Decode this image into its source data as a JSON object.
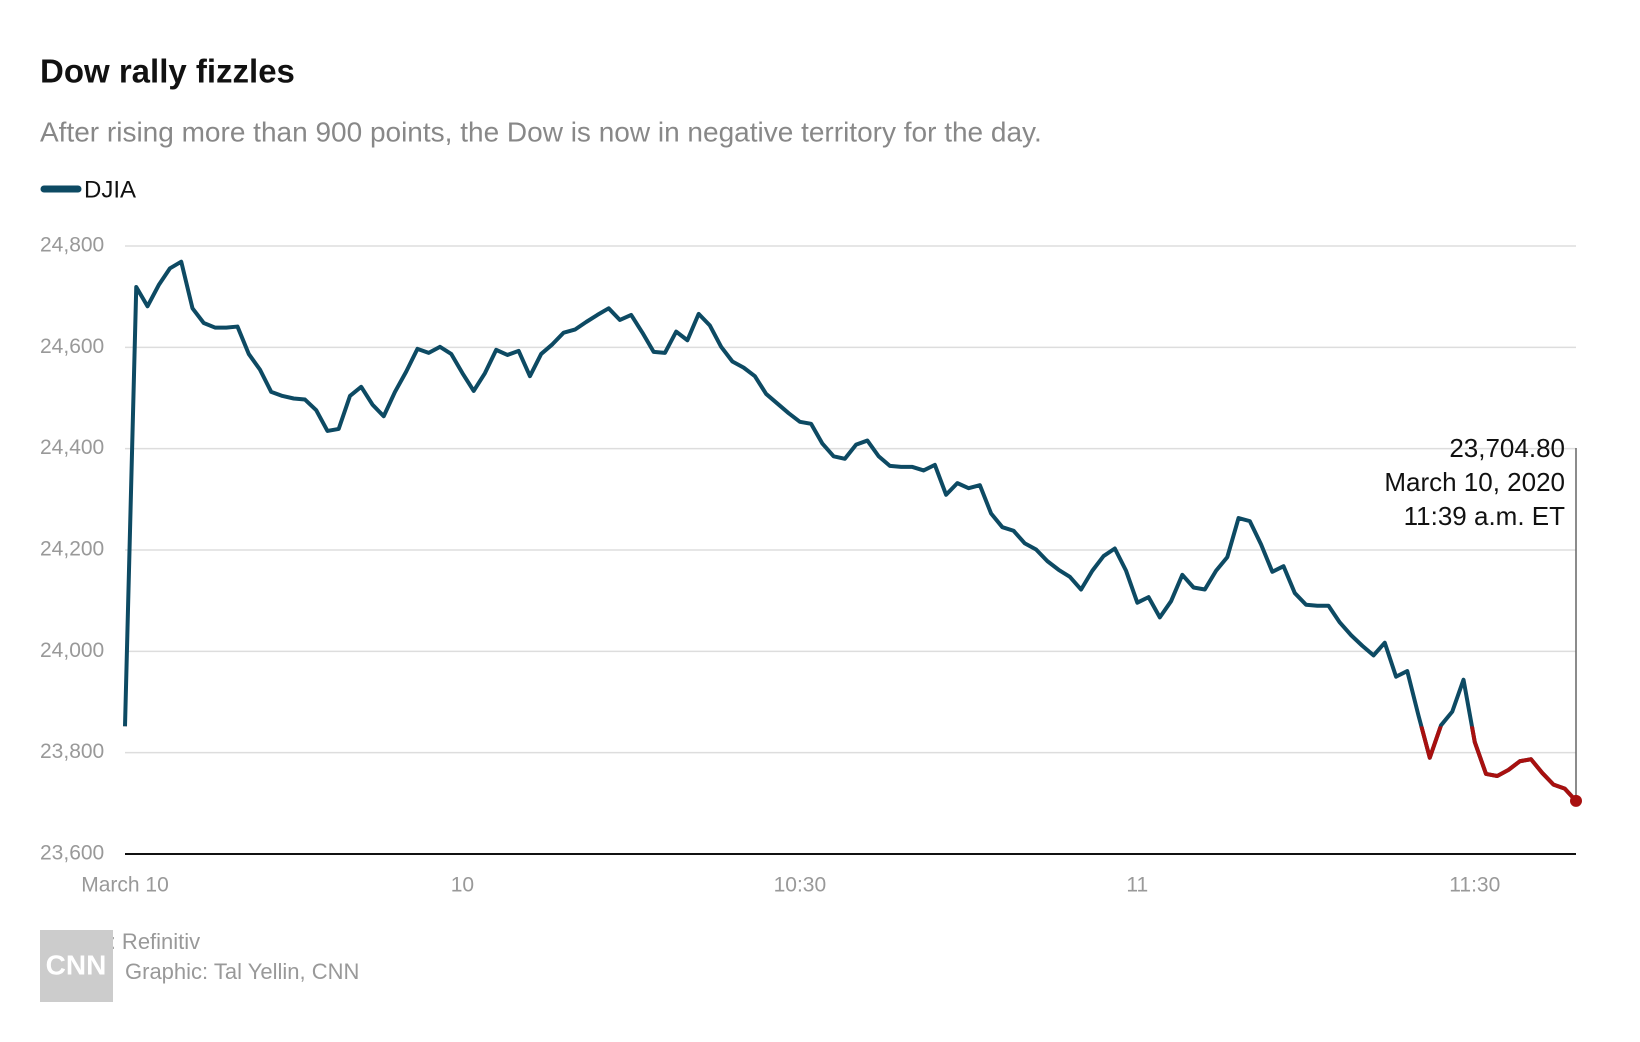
{
  "chart_data": {
    "type": "line",
    "title": "Dow rally fizzles",
    "subtitle": "After rising more than 900 points, the Dow is now in negative territory for the day.",
    "x": [
      0,
      1,
      2,
      3,
      4,
      5,
      6,
      7,
      8,
      9,
      10,
      11,
      12,
      13,
      14,
      15,
      16,
      17,
      18,
      19,
      20,
      21,
      22,
      23,
      24,
      25,
      26,
      27,
      28,
      29,
      30,
      31,
      32,
      33,
      34,
      35,
      36,
      37,
      38,
      39,
      40,
      41,
      42,
      43,
      44,
      45,
      46,
      47,
      48,
      49,
      50,
      51,
      52,
      53,
      54,
      55,
      56,
      57,
      58,
      59,
      60,
      61,
      62,
      63,
      64,
      65,
      66,
      67,
      68,
      69,
      70,
      71,
      72,
      73,
      74,
      75,
      76,
      77,
      78,
      79,
      80,
      81,
      82,
      83,
      84,
      85,
      86,
      87,
      88,
      89,
      90,
      91,
      92,
      93,
      94,
      95,
      96,
      97,
      98,
      99,
      100,
      101,
      102,
      103,
      104,
      105,
      106,
      107,
      108,
      109,
      110,
      111,
      112,
      113,
      114,
      115,
      116,
      117,
      118,
      119,
      120,
      121,
      122,
      123,
      124,
      125,
      126,
      127,
      128,
      129
    ],
    "series": [
      {
        "name": "DJIA",
        "color": "#0d4a63",
        "negative_color": "#a8100f",
        "values": [
          23852,
          24719,
          24681,
          24723,
          24756,
          24769,
          24677,
          24648,
          24639,
          24639,
          24641,
          24587,
          24556,
          24512,
          24504,
          24499,
          24497,
          24476,
          24435,
          24439,
          24504,
          24522,
          24487,
          24464,
          24512,
          24552,
          24597,
          24589,
          24601,
          24587,
          24549,
          24514,
          24549,
          24595,
          24585,
          24593,
          24543,
          24587,
          24606,
          24629,
          24635,
          24650,
          24664,
          24677,
          24654,
          24664,
          24629,
          24591,
          24589,
          24631,
          24614,
          24666,
          24643,
          24601,
          24572,
          24560,
          24543,
          24508,
          24489,
          24470,
          24453,
          24449,
          24410,
          24385,
          24380,
          24408,
          24416,
          24385,
          24366,
          24364,
          24364,
          24357,
          24368,
          24309,
          24332,
          24322,
          24328,
          24272,
          24245,
          24238,
          24213,
          24201,
          24178,
          24161,
          24147,
          24122,
          24159,
          24188,
          24203,
          24159,
          24096,
          24107,
          24067,
          24099,
          24151,
          24126,
          24122,
          24159,
          24186,
          24263,
          24257,
          24211,
          24157,
          24168,
          24115,
          24092,
          24090,
          24090,
          24057,
          24032,
          24011,
          23992,
          24017,
          23950,
          23961,
          23873,
          23790,
          23854,
          23881,
          23944,
          23821,
          23758,
          23754,
          23766,
          23783,
          23787,
          23760,
          23737,
          23729,
          23704.8
        ]
      }
    ],
    "annotation": [
      "23,704.80",
      "March 10, 2020",
      "11:39 a.m. ET"
    ],
    "xlim": [
      0,
      129
    ],
    "xticks": [
      {
        "value": 0,
        "label": "March 10"
      },
      {
        "value": 30,
        "label": "10"
      },
      {
        "value": 60,
        "label": "10:30"
      },
      {
        "value": 90,
        "label": "11"
      },
      {
        "value": 120,
        "label": "11:30"
      }
    ],
    "ylim": [
      23600,
      24800
    ],
    "yticks": [
      {
        "value": 23600,
        "label": "23,600"
      },
      {
        "value": 23800,
        "label": "23,800"
      },
      {
        "value": 24000,
        "label": "24,000"
      },
      {
        "value": 24200,
        "label": "24,200"
      },
      {
        "value": 24400,
        "label": "24,400"
      },
      {
        "value": 24600,
        "label": "24,600"
      },
      {
        "value": 24800,
        "label": "24,800"
      }
    ],
    "grid": true,
    "source": "Source: Refinitiv",
    "credit": "Graphic: Tal Yellin, CNN",
    "logo": "CNN"
  }
}
